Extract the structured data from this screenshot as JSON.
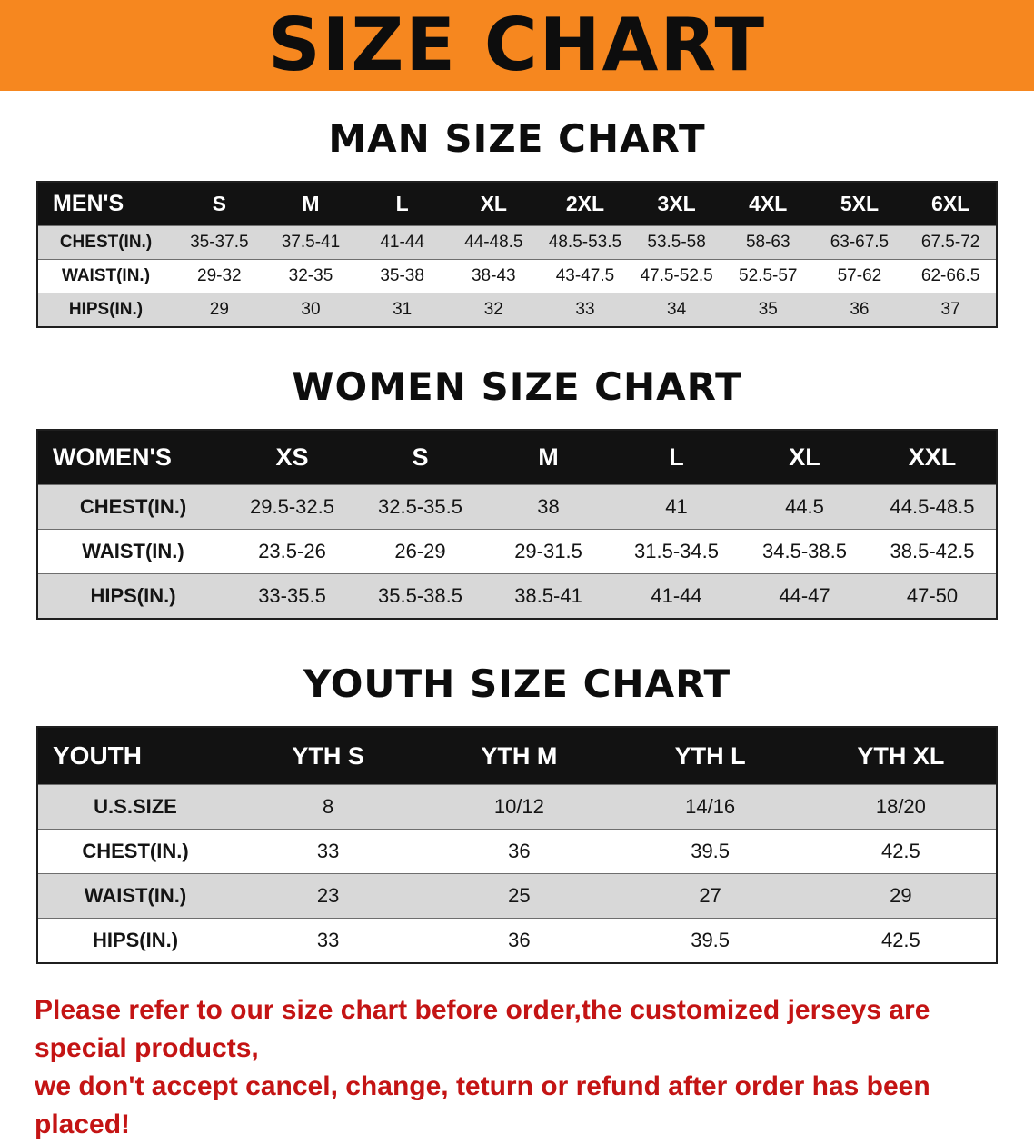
{
  "banner": {
    "title": "SIZE CHART",
    "bg_color": "#F6871F"
  },
  "sections": [
    {
      "heading": "MAN SIZE CHART",
      "table": {
        "label_header": "MEN'S",
        "columns": [
          "S",
          "M",
          "L",
          "XL",
          "2XL",
          "3XL",
          "4XL",
          "5XL",
          "6XL"
        ],
        "rows": [
          {
            "label": "CHEST(IN.)",
            "values": [
              "35-37.5",
              "37.5-41",
              "41-44",
              "44-48.5",
              "48.5-53.5",
              "53.5-58",
              "58-63",
              "63-67.5",
              "67.5-72"
            ]
          },
          {
            "label": "WAIST(IN.)",
            "values": [
              "29-32",
              "32-35",
              "35-38",
              "38-43",
              "43-47.5",
              "47.5-52.5",
              "52.5-57",
              "57-62",
              "62-66.5"
            ]
          },
          {
            "label": "HIPS(IN.)",
            "values": [
              "29",
              "30",
              "31",
              "32",
              "33",
              "34",
              "35",
              "36",
              "37"
            ]
          }
        ]
      }
    },
    {
      "heading": "WOMEN SIZE CHART",
      "table": {
        "label_header": "WOMEN'S",
        "columns": [
          "XS",
          "S",
          "M",
          "L",
          "XL",
          "XXL"
        ],
        "rows": [
          {
            "label": "CHEST(IN.)",
            "values": [
              "29.5-32.5",
              "32.5-35.5",
              "38",
              "41",
              "44.5",
              "44.5-48.5"
            ]
          },
          {
            "label": "WAIST(IN.)",
            "values": [
              "23.5-26",
              "26-29",
              "29-31.5",
              "31.5-34.5",
              "34.5-38.5",
              "38.5-42.5"
            ]
          },
          {
            "label": "HIPS(IN.)",
            "values": [
              "33-35.5",
              "35.5-38.5",
              "38.5-41",
              "41-44",
              "44-47",
              "47-50"
            ]
          }
        ]
      }
    },
    {
      "heading": "YOUTH SIZE CHART",
      "table": {
        "label_header": "YOUTH",
        "columns": [
          "YTH S",
          "YTH M",
          "YTH L",
          "YTH XL"
        ],
        "rows": [
          {
            "label": "U.S.SIZE",
            "values": [
              "8",
              "10/12",
              "14/16",
              "18/20"
            ]
          },
          {
            "label": "CHEST(IN.)",
            "values": [
              "33",
              "36",
              "39.5",
              "42.5"
            ]
          },
          {
            "label": "WAIST(IN.)",
            "values": [
              "23",
              "25",
              "27",
              "29"
            ]
          },
          {
            "label": "HIPS(IN.)",
            "values": [
              "33",
              "36",
              "39.5",
              "42.5"
            ]
          }
        ]
      }
    }
  ],
  "disclaimer": {
    "line1": "Please refer to our size chart before order,the customized jerseys are special products,",
    "line2": "we don't accept cancel, change, teturn or refund after order has been placed!",
    "color": "#C41414"
  }
}
